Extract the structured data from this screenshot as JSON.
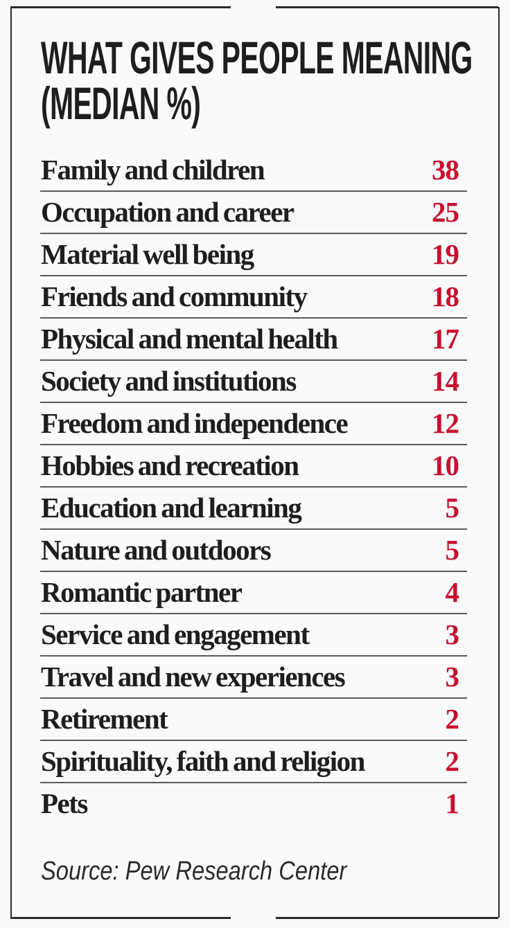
{
  "chart_data": {
    "type": "table",
    "title": [
      "WHAT GIVES PEOPLE MEANING",
      "(MEDIAN %)"
    ],
    "rows": [
      {
        "label": "Family and children",
        "value": 38
      },
      {
        "label": "Occupation and career",
        "value": 25
      },
      {
        "label": "Material well being",
        "value": 19
      },
      {
        "label": "Friends and community",
        "value": 18
      },
      {
        "label": "Physical and mental health",
        "value": 17
      },
      {
        "label": "Society and institutions",
        "value": 14
      },
      {
        "label": "Freedom and independence",
        "value": 12
      },
      {
        "label": "Hobbies and recreation",
        "value": 10
      },
      {
        "label": "Education and learning",
        "value": 5
      },
      {
        "label": "Nature and outdoors",
        "value": 5
      },
      {
        "label": "Romantic partner",
        "value": 4
      },
      {
        "label": "Service and engagement",
        "value": 3
      },
      {
        "label": "Travel and new experiences",
        "value": 3
      },
      {
        "label": "Retirement",
        "value": 2
      },
      {
        "label": "Spirituality, faith and religion",
        "value": 2
      },
      {
        "label": "Pets",
        "value": 1
      }
    ],
    "source": "Source: Pew Research Center",
    "colors": {
      "value": "#c8102e",
      "text": "#1e1e1e",
      "background": "#fafafa"
    }
  }
}
